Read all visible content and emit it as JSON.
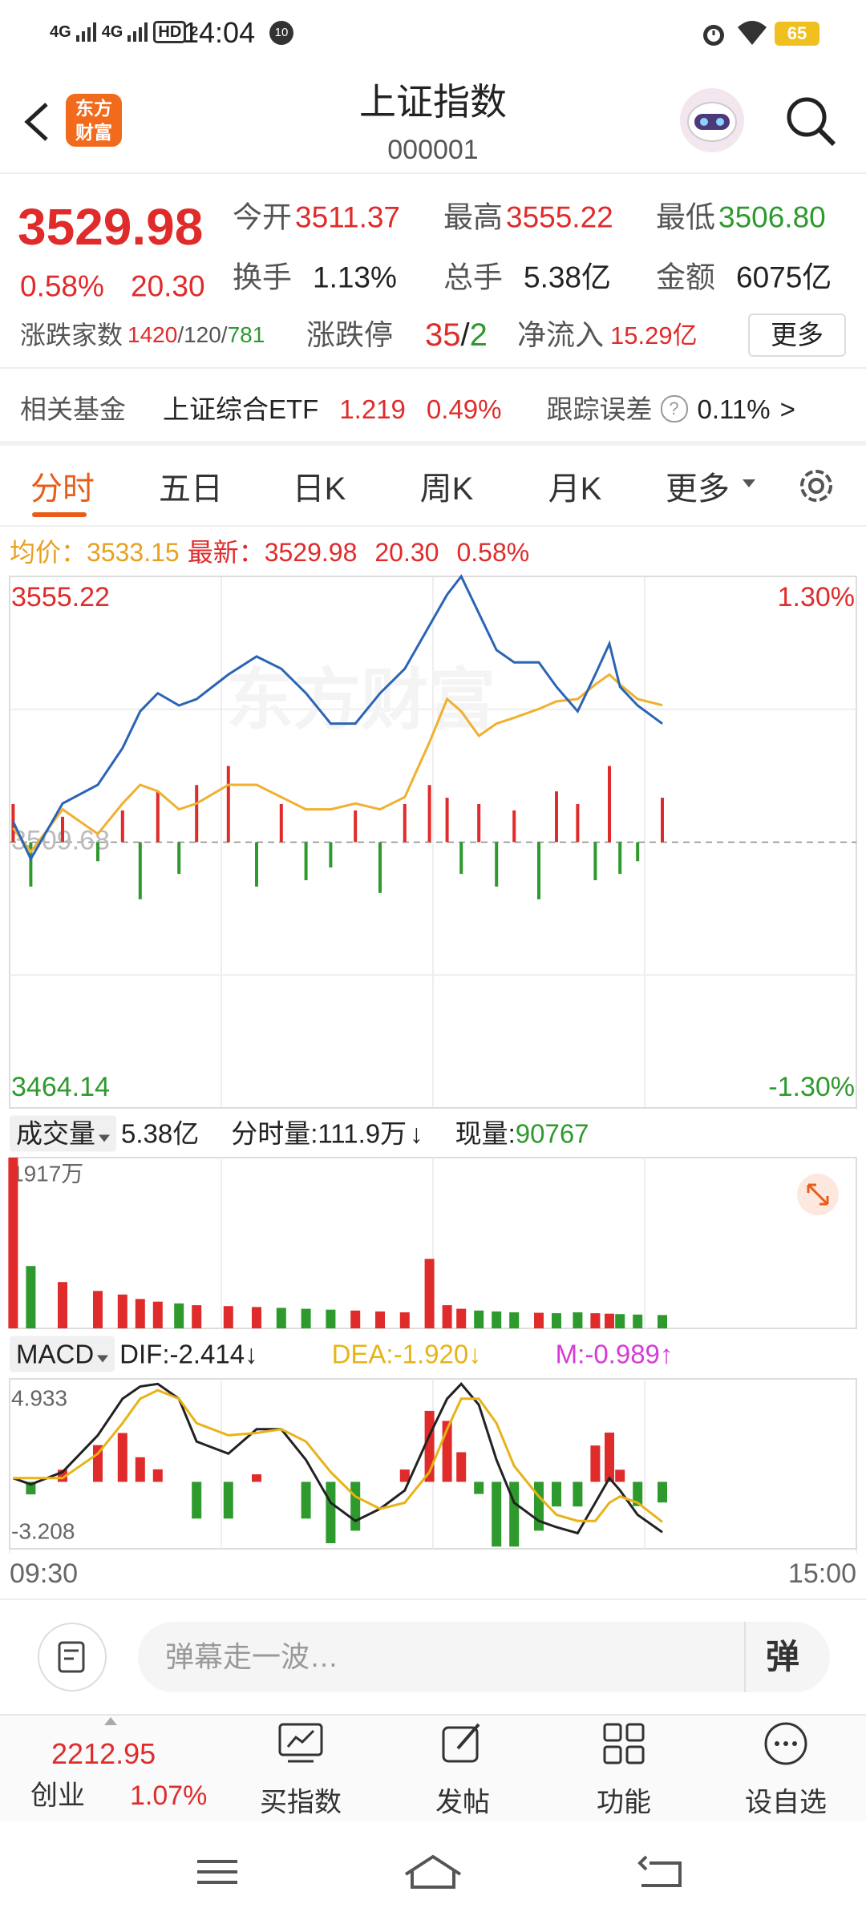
{
  "status_bar": {
    "signals": [
      "4G",
      "4G"
    ],
    "hd": "HD",
    "hd_sub": "2",
    "time": "14:04",
    "notice": "10",
    "battery": "65"
  },
  "header": {
    "title": "上证指数",
    "code": "000001",
    "logo": [
      "东方",
      "财富"
    ]
  },
  "quote": {
    "price": "3529.98",
    "change_pct": "0.58%",
    "change": "20.30",
    "row1": [
      {
        "label": "今开",
        "value": "3511.37"
      },
      {
        "label": "最高",
        "value": "3555.22"
      },
      {
        "label": "最低",
        "value": "3506.80"
      }
    ],
    "row2": [
      {
        "label": "换手",
        "value": "1.13%"
      },
      {
        "label": "总手",
        "value": "5.38亿"
      },
      {
        "label": "金额",
        "value": "6075亿"
      }
    ],
    "breadth": {
      "label": "涨跌家数",
      "parts": [
        "1420",
        "/120/",
        "781"
      ]
    },
    "limit": {
      "label": "涨跌停",
      "parts": [
        "35",
        "/",
        "2"
      ]
    },
    "inflow": {
      "label": "净流入",
      "value": "15.29亿"
    },
    "more": "更多"
  },
  "fund": {
    "label": "相关基金",
    "name": "上证综合ETF",
    "price": "1.219",
    "pct": "0.49%",
    "error_label": "跟踪误差",
    "help": "?",
    "error": "0.11%",
    "arrow": ">"
  },
  "tabs": [
    "分时",
    "五日",
    "日K",
    "周K",
    "月K",
    "更多"
  ],
  "info": {
    "avg_label": "均价：",
    "avg": "3533.15",
    "last_label": "最新：",
    "last": "3529.98",
    "change": "20.30",
    "pct": "0.58%"
  },
  "volume_header": {
    "label": "成交量",
    "total": "5.38亿",
    "minute_label": "分时量:",
    "minute": "111.9万",
    "minute_arrow": "↓",
    "now_label": "现量:",
    "now": "90767"
  },
  "macd_header": {
    "label": "MACD",
    "dif": "DIF:-2.414↓",
    "dea": "DEA:-1.920↓",
    "m": "M:-0.989↑"
  },
  "chart_data": [
    {
      "type": "line",
      "x": [
        1,
        6,
        15,
        25,
        32,
        37,
        42,
        48,
        53,
        62,
        70,
        77,
        84,
        91,
        98,
        105,
        112,
        119,
        124,
        128,
        133,
        138,
        143,
        150,
        155,
        161,
        166,
        170,
        173,
        178,
        185
      ],
      "xlim": [
        0,
        240
      ],
      "xticks": [
        {
          "value": 0,
          "label": "09:30"
        },
        {
          "value": 240,
          "label": "15:00"
        }
      ],
      "ylim": [
        3464.14,
        3555.22
      ],
      "yticks": [
        3464.14,
        3509.68,
        3555.22
      ],
      "y2lim": [
        -1.3,
        1.3
      ],
      "y2ticks": [
        {
          "value": -1.3,
          "label": "-1.30%"
        },
        {
          "value": 1.3,
          "label": "1.30%"
        }
      ],
      "up_color": "#e02b2b",
      "down_color": "#2e9a2e",
      "series": [
        {
          "color": "#2b64b5",
          "values": [
            3513.2,
            3506.8,
            3516.3,
            3519.5,
            3525.8,
            3532.1,
            3535.2,
            3533.1,
            3534.2,
            3538.4,
            3541.5,
            3539.4,
            3535.2,
            3530.0,
            3530.0,
            3535.2,
            3539.4,
            3546.8,
            3552.1,
            3555.22,
            3548.9,
            3542.6,
            3540.5,
            3540.5,
            3536.3,
            3532.1,
            3538.4,
            3543.7,
            3536.3,
            3533.1,
            3529.98
          ]
        },
        {
          "color": "#f0b030",
          "values": [
            3512.1,
            3508.0,
            3515.3,
            3511.1,
            3516.3,
            3519.5,
            3518.4,
            3515.3,
            3516.3,
            3519.5,
            3519.5,
            3517.4,
            3515.3,
            3515.3,
            3516.3,
            3515.3,
            3517.4,
            3526.8,
            3534.2,
            3532.1,
            3527.9,
            3530.0,
            3531.0,
            3532.5,
            3533.8,
            3534.2,
            3536.7,
            3538.4,
            3536.7,
            3534.2,
            3533.15
          ]
        }
      ],
      "flow": [
        30,
        -35,
        20,
        -15,
        25,
        -45,
        40,
        -25,
        45,
        60,
        -35,
        30,
        -30,
        -20,
        25,
        -40,
        30,
        45,
        35,
        -25,
        30,
        -35,
        25,
        -45,
        40,
        30,
        -30,
        60,
        -25,
        -15,
        35
      ]
    },
    {
      "type": "bar",
      "values": [
        1917,
        700,
        520,
        420,
        380,
        330,
        300,
        280,
        260,
        250,
        240,
        230,
        220,
        210,
        200,
        190,
        180,
        780,
        260,
        220,
        200,
        190,
        180,
        175,
        170,
        180,
        170,
        165,
        160,
        155,
        150
      ],
      "ylim": [
        0,
        1917
      ],
      "yticks": [
        {
          "value": 1917,
          "label": "1917万"
        }
      ],
      "up_color": "#e02b2b",
      "down_color": "#2e9a2e"
    },
    {
      "type": "macd",
      "ylim": [
        -3.208,
        4.933
      ],
      "yticks": [
        -3.208,
        4.933
      ],
      "up_color": "#e02b2b",
      "down_color": "#2e9a2e",
      "histogram": [
        0,
        -0.6,
        0.58,
        1.76,
        2.34,
        1.18,
        0.6,
        0,
        -1.76,
        -1.76,
        0.36,
        0,
        -1.76,
        -2.94,
        -2.34,
        0,
        0.59,
        3.4,
        2.92,
        1.42,
        -0.58,
        -3.1,
        -3.1,
        -2.34,
        -1.18,
        -1.18,
        1.74,
        2.36,
        0.58,
        -1.16,
        -0.989
      ],
      "series": [
        {
          "color": "#222222",
          "values": [
            0.18,
            -0.12,
            0.47,
            2.23,
            3.98,
            4.57,
            4.69,
            3.98,
            1.93,
            1.35,
            2.52,
            2.52,
            1.05,
            -1.0,
            -1.87,
            -1.29,
            -0.41,
            2.23,
            3.98,
            4.69,
            3.69,
            1.05,
            -1.0,
            -1.87,
            -2.17,
            -2.46,
            -1.0,
            0.18,
            -0.41,
            -1.58,
            -2.414
          ]
        },
        {
          "color": "#e8b317",
          "values": [
            0.18,
            0.18,
            0.18,
            1.35,
            2.81,
            3.98,
            4.39,
            3.98,
            2.81,
            2.23,
            2.34,
            2.52,
            1.93,
            0.47,
            -0.7,
            -1.29,
            -1.0,
            0.47,
            2.52,
            3.98,
            3.98,
            2.81,
            0.76,
            -0.7,
            -1.58,
            -1.87,
            -1.87,
            -1.0,
            -0.7,
            -1.0,
            -1.92
          ]
        }
      ]
    }
  ],
  "comment_bar": {
    "placeholder": "弹幕走一波…",
    "button": "弹"
  },
  "bottom_nav": {
    "index_value": "2212.95",
    "index_name": "创业",
    "index_pct": "1.07%",
    "items": [
      "买指数",
      "发帖",
      "功能",
      "设自选"
    ]
  }
}
